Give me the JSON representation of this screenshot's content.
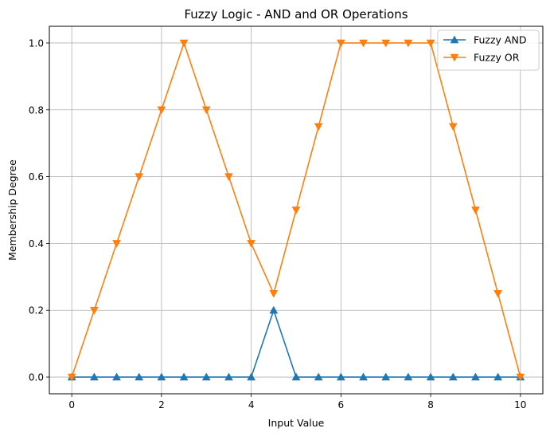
{
  "chart_data": {
    "type": "line",
    "title": "Fuzzy Logic - AND and OR Operations",
    "xlabel": "Input Value",
    "ylabel": "Membership Degree",
    "xlim": [
      -0.5,
      10.5
    ],
    "ylim": [
      -0.05,
      1.05
    ],
    "xticks": [
      0,
      2,
      4,
      6,
      8,
      10
    ],
    "yticks": [
      0.0,
      0.2,
      0.4,
      0.6,
      0.8,
      1.0
    ],
    "grid": true,
    "legend_position": "top-right",
    "x": [
      0,
      0.5,
      1,
      1.5,
      2,
      2.5,
      3,
      3.5,
      4,
      4.5,
      5,
      5.5,
      6,
      6.5,
      7,
      7.5,
      8,
      8.5,
      9,
      9.5,
      10
    ],
    "series": [
      {
        "name": "Fuzzy AND",
        "color": "#1f77b4",
        "marker": "triangle-up",
        "values": [
          0,
          0,
          0,
          0,
          0,
          0,
          0,
          0,
          0,
          0.2,
          0,
          0,
          0,
          0,
          0,
          0,
          0,
          0,
          0,
          0,
          0
        ]
      },
      {
        "name": "Fuzzy OR",
        "color": "#ff7f0e",
        "marker": "triangle-down",
        "values": [
          0,
          0.2,
          0.4,
          0.6,
          0.8,
          1.0,
          0.8,
          0.6,
          0.4,
          0.25,
          0.5,
          0.75,
          1.0,
          1.0,
          1.0,
          1.0,
          1.0,
          0.75,
          0.5,
          0.25,
          0
        ]
      }
    ]
  }
}
